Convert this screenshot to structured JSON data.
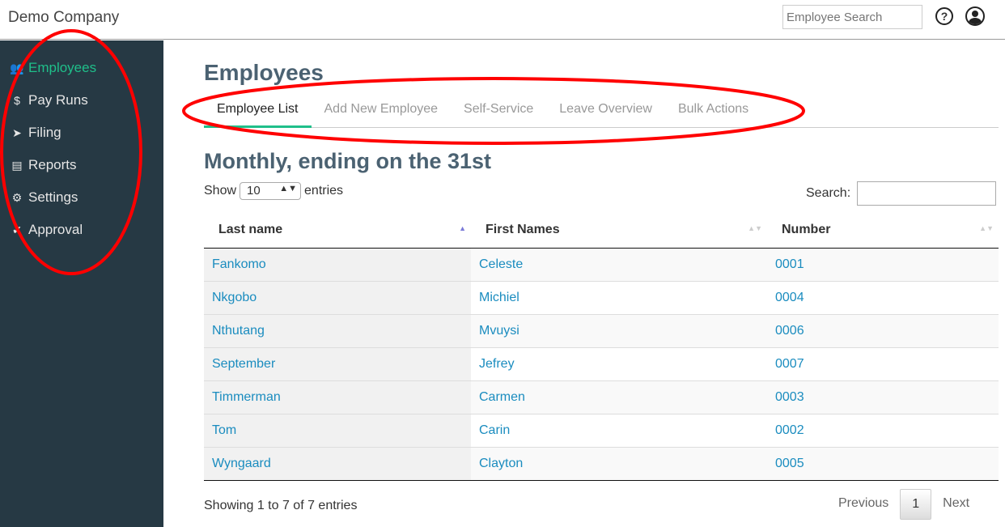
{
  "header": {
    "brand": "Demo Company",
    "search_placeholder": "Employee Search"
  },
  "sidebar": {
    "items": [
      {
        "label": "Employees",
        "icon": "users-icon",
        "active": true
      },
      {
        "label": "Pay Runs",
        "icon": "dollar-icon"
      },
      {
        "label": "Filing",
        "icon": "paper-plane-icon"
      },
      {
        "label": "Reports",
        "icon": "newspaper-icon"
      },
      {
        "label": "Settings",
        "icon": "gear-icon"
      },
      {
        "label": "Approval",
        "icon": "check-icon"
      }
    ]
  },
  "page": {
    "title": "Employees",
    "tabs": [
      "Employee List",
      "Add New Employee",
      "Self-Service",
      "Leave Overview",
      "Bulk Actions"
    ],
    "subtitle": "Monthly, ending on the 31st",
    "show_label": "Show",
    "entries_value": "10",
    "entries_label": "entries",
    "search_label": "Search:"
  },
  "table": {
    "headers": [
      "Last name",
      "First Names",
      "Number"
    ],
    "rows": [
      [
        "Fankomo",
        "Celeste",
        "0001"
      ],
      [
        "Nkgobo",
        "Michiel",
        "0004"
      ],
      [
        "Nthutang",
        "Mvuysi",
        "0006"
      ],
      [
        "September",
        "Jefrey",
        "0007"
      ],
      [
        "Timmerman",
        "Carmen",
        "0003"
      ],
      [
        "Tom",
        "Carin",
        "0002"
      ],
      [
        "Wyngaard",
        "Clayton",
        "0005"
      ]
    ]
  },
  "footer": {
    "info": "Showing 1 to 7 of 7 entries",
    "previous": "Previous",
    "page": "1",
    "next": "Next"
  },
  "colors": {
    "sidebar": "#263944",
    "accent": "#1fbf8a",
    "link": "#1a8cbf",
    "annotation": "#ff0000"
  }
}
